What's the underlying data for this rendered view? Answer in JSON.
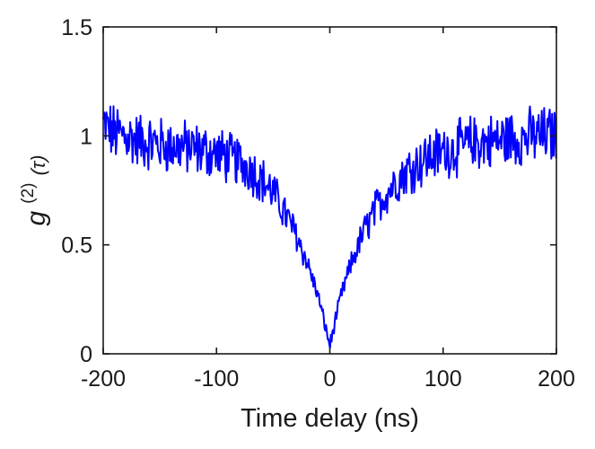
{
  "chart_data": {
    "type": "line",
    "title": "",
    "xlabel": "Time delay (ns)",
    "ylabel": {
      "base": "g",
      "superscript": "(2)",
      "argument": "(τ)"
    },
    "xlim": [
      -200,
      200
    ],
    "ylim": [
      0,
      1.5
    ],
    "x_ticks": [
      -200,
      -100,
      0,
      100,
      200
    ],
    "x_tick_labels": [
      "-200",
      "-100",
      "0",
      "100",
      "200"
    ],
    "y_ticks": [
      0,
      0.5,
      1,
      1.5
    ],
    "y_tick_labels": [
      "0",
      "0.5",
      "1",
      "1.5"
    ],
    "grid": false,
    "legend": "none",
    "box": true,
    "series": [
      {
        "color": "#0000ff",
        "x": [
          -200,
          -190,
          -180,
          -170,
          -160,
          -150,
          -140,
          -130,
          -120,
          -110,
          -100,
          -90,
          -80,
          -70,
          -60,
          -50,
          -40,
          -30,
          -20,
          -15,
          -10,
          -5,
          -2,
          0,
          2,
          5,
          10,
          15,
          20,
          30,
          40,
          50,
          60,
          70,
          80,
          90,
          100,
          110,
          120,
          130,
          140,
          150,
          160,
          170,
          180,
          190,
          200
        ],
        "y": [
          1.05,
          1.01,
          1.0,
          0.98,
          0.97,
          0.96,
          0.95,
          0.95,
          0.94,
          0.93,
          0.92,
          0.9,
          0.88,
          0.85,
          0.8,
          0.74,
          0.65,
          0.55,
          0.42,
          0.34,
          0.26,
          0.15,
          0.08,
          0.04,
          0.08,
          0.16,
          0.27,
          0.35,
          0.43,
          0.56,
          0.66,
          0.74,
          0.8,
          0.85,
          0.88,
          0.91,
          0.93,
          0.94,
          0.96,
          0.97,
          0.97,
          0.98,
          0.99,
          0.99,
          1.0,
          1.0,
          1.01
        ],
        "noise_amplitude": 0.12,
        "sample_step_ns": 0.7
      }
    ]
  }
}
